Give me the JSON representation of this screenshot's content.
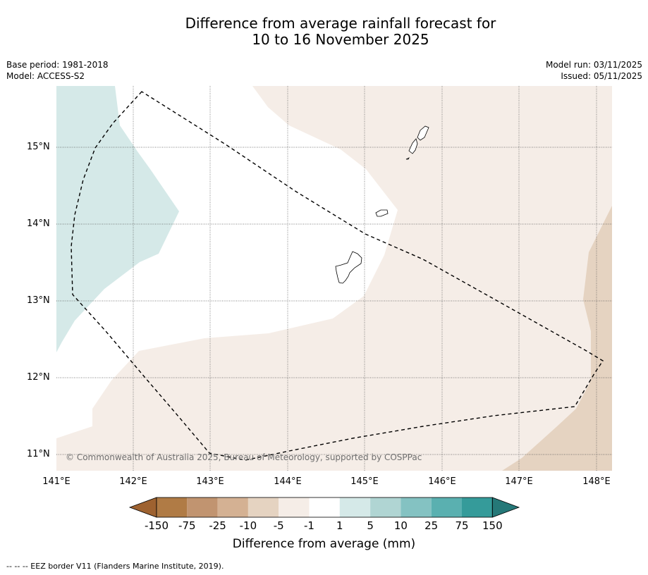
{
  "title": {
    "line1": "Difference from average rainfall forecast for",
    "line2": "10 to 16 November 2025"
  },
  "meta": {
    "base_period": "Base period: 1981-2018",
    "model": "Model: ACCESS-S2",
    "model_run": "Model run: 03/11/2025",
    "issued": "Issued: 05/11/2025"
  },
  "map": {
    "copyright": "© Commonwealth of Australia 2025, Bureau of Meteorology, supported by COSPPac",
    "lat_labels": [
      "15°N",
      "14°N",
      "13°N",
      "12°N",
      "11°N"
    ],
    "lon_labels": [
      "141°E",
      "142°E",
      "143°E",
      "144°E",
      "145°E",
      "146°E",
      "147°E",
      "148°E"
    ],
    "colors": {
      "light_tan": "#f5ede7",
      "tan": "#e5d3c1",
      "light_teal": "#d5e9e8",
      "border": "#000000",
      "grid": "#555555"
    }
  },
  "colorbar": {
    "ticks": [
      "-150",
      "-75",
      "-25",
      "-10",
      "-5",
      "-1",
      "1",
      "5",
      "10",
      "25",
      "75",
      "150"
    ],
    "colors": [
      "#9e6230",
      "#b07b45",
      "#c19470",
      "#d4b193",
      "#e5d3c1",
      "#f5ede7",
      "#ffffff",
      "#d5e9e8",
      "#b0d5d3",
      "#84c2c2",
      "#5ab0b0",
      "#359b9a",
      "#257878"
    ],
    "label": "Difference from average (mm)"
  },
  "footnote": "--  --  -- EEZ border V11 (Flanders Marine Institute, 2019)."
}
